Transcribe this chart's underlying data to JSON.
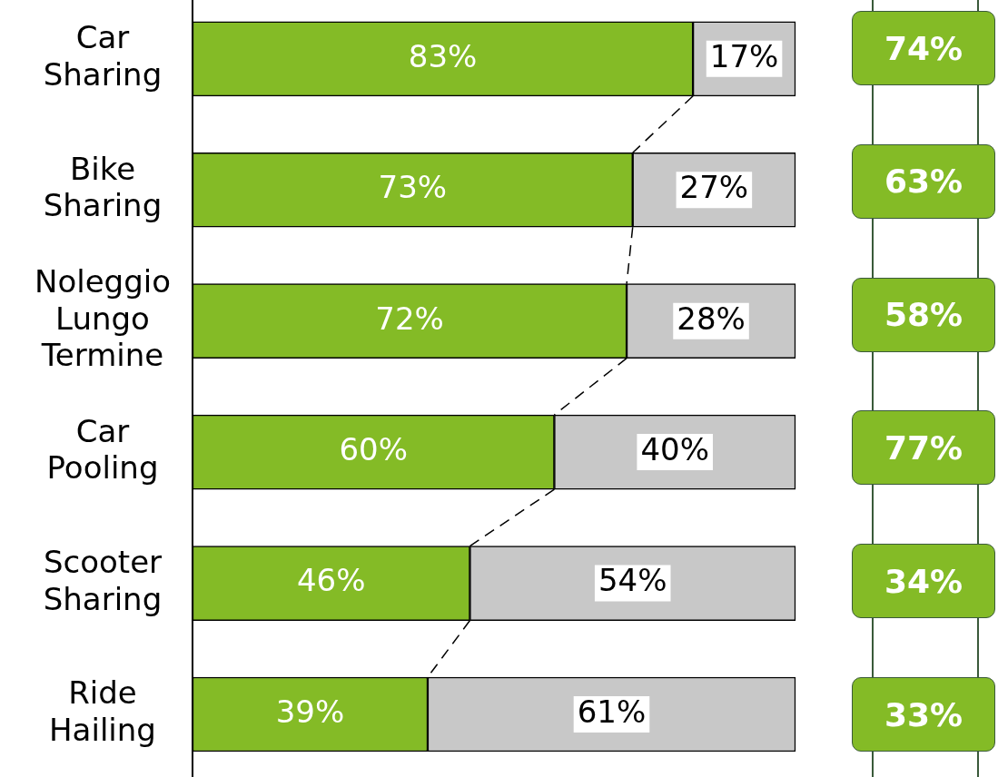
{
  "chart_data": [
    {
      "type": "bar",
      "orientation": "horizontal",
      "stacked": true,
      "tick_labels": "y",
      "categories": [
        "Car Sharing",
        "Bike Sharing",
        "Noleggio Lungo Termine",
        "Car Pooling",
        "Scooter Sharing",
        "Ride Hailing"
      ],
      "series": [
        {
          "color": "#84bb26",
          "values": [
            83,
            73,
            72,
            60,
            46,
            39
          ],
          "value_labels": [
            "83%",
            "73%",
            "72%",
            "60%",
            "46%",
            "39%"
          ]
        },
        {
          "color": "#c8c8c8",
          "values": [
            17,
            27,
            28,
            40,
            54,
            61
          ],
          "value_labels": [
            "17%",
            "27%",
            "28%",
            "40%",
            "54%",
            "61%"
          ]
        }
      ]
    },
    {
      "type": "other",
      "color": "#84bb26",
      "annotations": [
        "74%",
        "63%",
        "58%",
        "77%",
        "34%",
        "33%"
      ]
    }
  ]
}
